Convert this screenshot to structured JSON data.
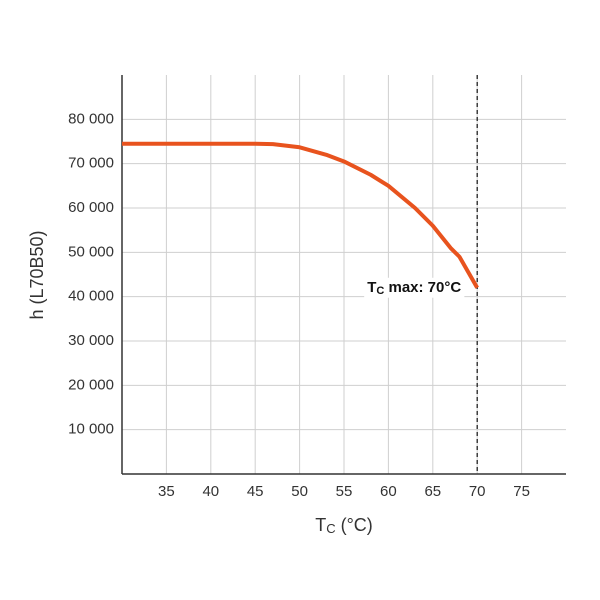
{
  "chart_data": {
    "type": "line",
    "x": [
      30,
      35,
      40,
      45,
      47,
      50,
      53,
      55,
      58,
      60,
      63,
      65,
      67,
      68,
      69,
      70
    ],
    "series": [
      {
        "color": "#e8531e",
        "values": [
          74500,
          74500,
          74500,
          74500,
          74400,
          73700,
          72000,
          70500,
          67500,
          65000,
          60000,
          56000,
          51000,
          49000,
          45500,
          42000
        ]
      }
    ],
    "xlim": [
      30,
      80
    ],
    "ylim": [
      0,
      90000
    ],
    "xticks": [
      35,
      40,
      45,
      50,
      55,
      60,
      65,
      70,
      75
    ],
    "yticks": [
      {
        "value": 10000,
        "label": "10 000"
      },
      {
        "value": 20000,
        "label": "20 000"
      },
      {
        "value": 30000,
        "label": "30 000"
      },
      {
        "value": 40000,
        "label": "40 000"
      },
      {
        "value": 50000,
        "label": "50 000"
      },
      {
        "value": 60000,
        "label": "60 000"
      },
      {
        "value": 70000,
        "label": "70 000"
      },
      {
        "value": 80000,
        "label": "80 000"
      }
    ],
    "grid": true,
    "ylabel": "h (L70B50)",
    "xlabel": {
      "main": "T",
      "sub": "C",
      "rest": " (°C)"
    },
    "annotation": {
      "main": "T",
      "sub": "C",
      "rest": " max: 70°C",
      "x": 70,
      "y": 42000
    },
    "vline": 70
  }
}
